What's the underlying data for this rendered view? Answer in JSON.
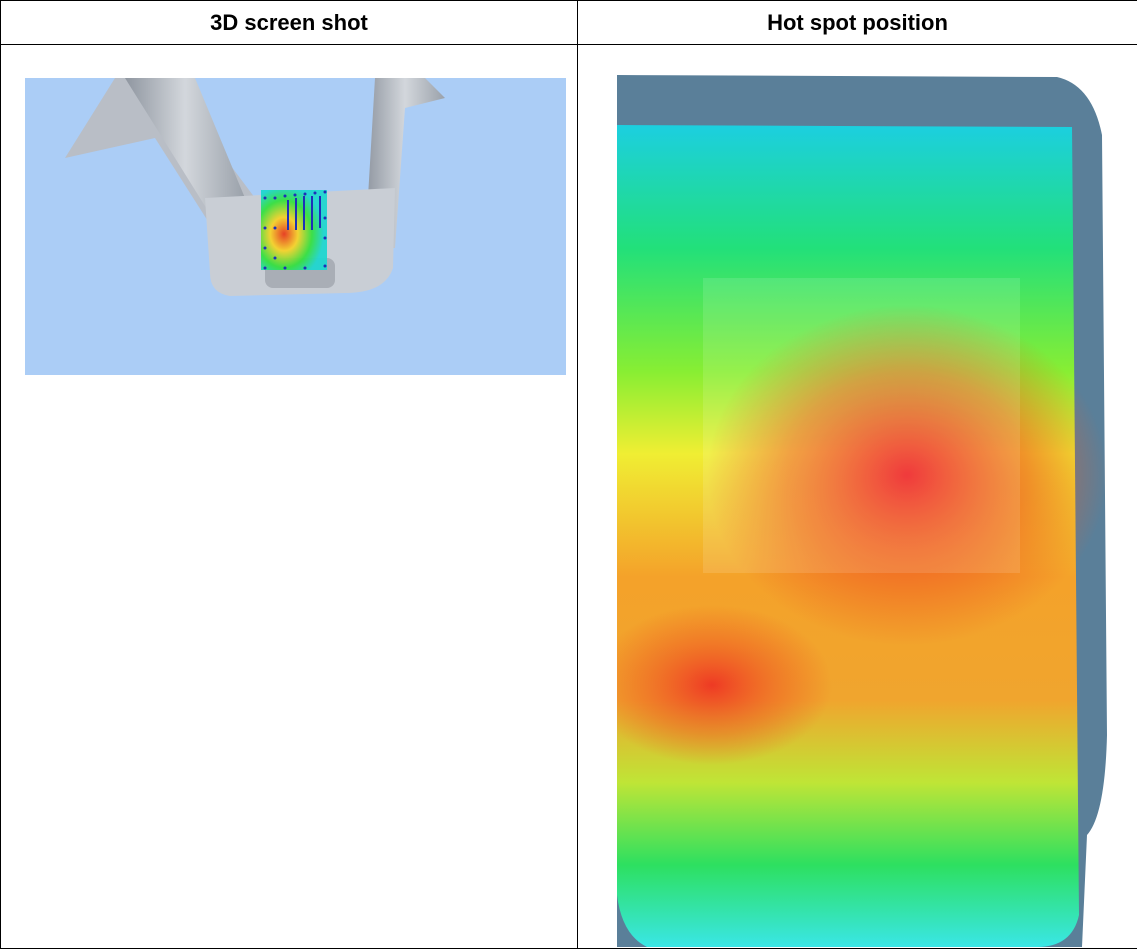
{
  "table": {
    "header": [
      "3D screen shot",
      "Hot spot position"
    ]
  }
}
